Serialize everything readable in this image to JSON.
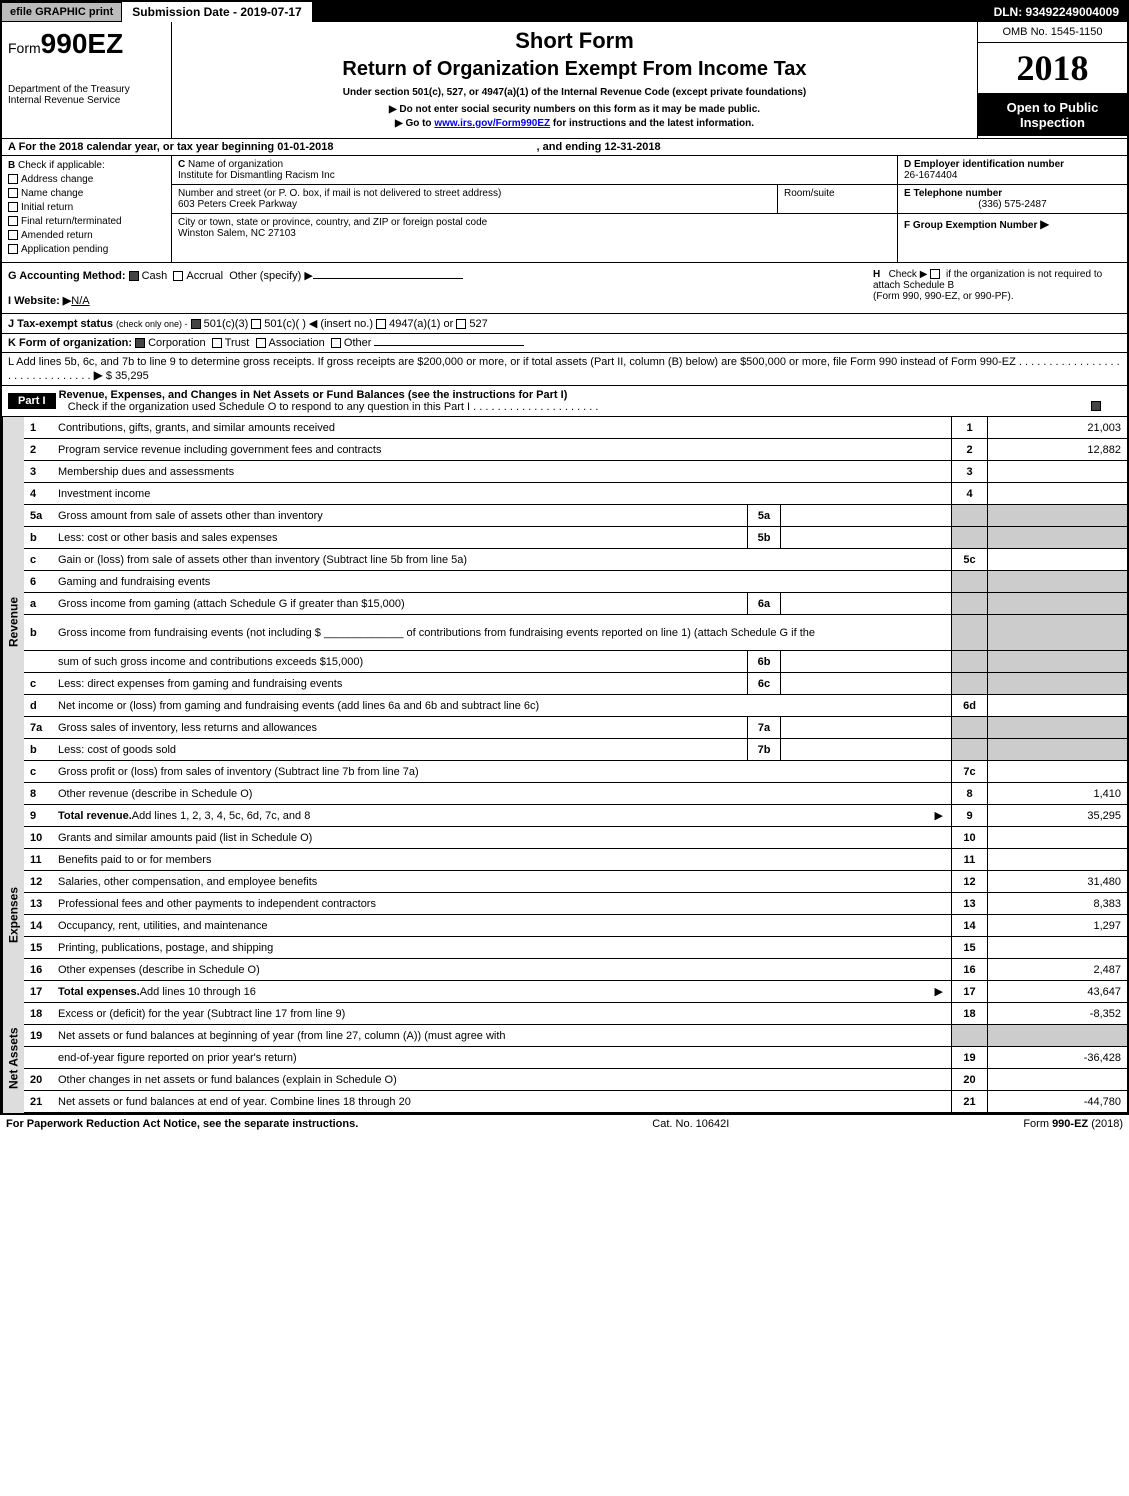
{
  "topbar": {
    "efile": "efile GRAPHIC print",
    "submission_label": "Submission Date - 2019-07-17",
    "dln": "DLN: 93492249004009"
  },
  "header": {
    "form_prefix": "Form",
    "form_number": "990EZ",
    "dept1": "Department of the Treasury",
    "dept2": "Internal Revenue Service",
    "short_form": "Short Form",
    "return_title": "Return of Organization Exempt From Income Tax",
    "subtitle": "Under section 501(c), 527, or 4947(a)(1) of the Internal Revenue Code (except private foundations)",
    "instr1": "▶ Do not enter social security numbers on this form as it may be made public.",
    "instr2_prefix": "▶ Go to ",
    "instr2_link": "www.irs.gov/Form990EZ",
    "instr2_suffix": " for instructions and the latest information.",
    "omb": "OMB No. 1545-1150",
    "year": "2018",
    "inspection1": "Open to Public",
    "inspection2": "Inspection"
  },
  "sectionA": {
    "line": "A  For the 2018 calendar year, or tax year beginning 01-01-2018",
    "ending": ", and ending 12-31-2018"
  },
  "sectionB": {
    "label": "B",
    "check_if": "Check if applicable:",
    "options": [
      "Address change",
      "Name change",
      "Initial return",
      "Final return/terminated",
      "Amended return",
      "Application pending"
    ]
  },
  "sectionC": {
    "label": "C",
    "name_label": "Name of organization",
    "name": "Institute for Dismantling Racism Inc",
    "addr_label": "Number and street (or P. O. box, if mail is not delivered to street address)",
    "addr": "603 Peters Creek Parkway",
    "room_label": "Room/suite",
    "city_label": "City or town, state or province, country, and ZIP or foreign postal code",
    "city": "Winston Salem, NC  27103"
  },
  "sectionD": {
    "label": "D Employer identification number",
    "value": "26-1674404"
  },
  "sectionE": {
    "label": "E Telephone number",
    "value": "(336) 575-2487"
  },
  "sectionF": {
    "label": "F Group Exemption Number",
    "arrow": "▶"
  },
  "sectionG": {
    "label": "G Accounting Method:",
    "cash": "Cash",
    "accrual": "Accrual",
    "other": "Other (specify) ▶"
  },
  "sectionH": {
    "label": "H",
    "check": "Check ▶",
    "text1": "if the organization is not required to attach Schedule B",
    "text2": "(Form 990, 990-EZ, or 990-PF)."
  },
  "sectionI": {
    "label": "I Website: ▶",
    "value": "N/A"
  },
  "sectionJ": {
    "label": "J Tax-exempt status",
    "note": "(check only one) -",
    "opts": [
      "501(c)(3)",
      "501(c)(  ) ◀ (insert no.)",
      "4947(a)(1) or",
      "527"
    ]
  },
  "sectionK": {
    "label": "K Form of organization:",
    "opts": [
      "Corporation",
      "Trust",
      "Association",
      "Other"
    ]
  },
  "sectionL": {
    "text": "L Add lines 5b, 6c, and 7b to line 9 to determine gross receipts. If gross receipts are $200,000 or more, or if total assets (Part II, column (B) below) are $500,000 or more, file Form 990 instead of Form 990-EZ",
    "arrow": "▶",
    "value": "$ 35,295"
  },
  "part1": {
    "header": "Part I",
    "title": "Revenue, Expenses, and Changes in Net Assets or Fund Balances (see the instructions for Part I)",
    "check_text": "Check if the organization used Schedule O to respond to any question in this Part I"
  },
  "sides": {
    "revenue": "Revenue",
    "expenses": "Expenses",
    "netassets": "Net Assets"
  },
  "rows": [
    {
      "num": "1",
      "desc": "Contributions, gifts, grants, and similar amounts received",
      "col": "1",
      "val": "21,003"
    },
    {
      "num": "2",
      "desc": "Program service revenue including government fees and contracts",
      "col": "2",
      "val": "12,882"
    },
    {
      "num": "3",
      "desc": "Membership dues and assessments",
      "col": "3",
      "val": ""
    },
    {
      "num": "4",
      "desc": "Investment income",
      "col": "4",
      "val": ""
    },
    {
      "num": "5a",
      "desc": "Gross amount from sale of assets other than inventory",
      "mid": "5a",
      "shaded": true
    },
    {
      "num": "b",
      "desc": "Less: cost or other basis and sales expenses",
      "mid": "5b",
      "shaded": true
    },
    {
      "num": "c",
      "desc": "Gain or (loss) from sale of assets other than inventory (Subtract line 5b from line 5a)",
      "col": "5c",
      "val": ""
    },
    {
      "num": "6",
      "desc": "Gaming and fundraising events",
      "shaded": true,
      "full_shade": true
    },
    {
      "num": "a",
      "desc": "Gross income from gaming (attach Schedule G if greater than $15,000)",
      "mid": "6a",
      "shaded": true
    },
    {
      "num": "b",
      "desc": "Gross income from fundraising events (not including $ _____________ of contributions from fundraising events reported on line 1) (attach Schedule G if the",
      "shaded": true,
      "tall": true
    },
    {
      "num": "",
      "desc": "sum of such gross income and contributions exceeds $15,000)",
      "mid": "6b",
      "shaded": true
    },
    {
      "num": "c",
      "desc": "Less: direct expenses from gaming and fundraising events",
      "mid": "6c",
      "shaded": true
    },
    {
      "num": "d",
      "desc": "Net income or (loss) from gaming and fundraising events (add lines 6a and 6b and subtract line 6c)",
      "col": "6d",
      "val": ""
    },
    {
      "num": "7a",
      "desc": "Gross sales of inventory, less returns and allowances",
      "mid": "7a",
      "shaded": true
    },
    {
      "num": "b",
      "desc": "Less: cost of goods sold",
      "mid": "7b",
      "shaded": true
    },
    {
      "num": "c",
      "desc": "Gross profit or (loss) from sales of inventory (Subtract line 7b from line 7a)",
      "col": "7c",
      "val": ""
    },
    {
      "num": "8",
      "desc": "Other revenue (describe in Schedule O)",
      "col": "8",
      "val": "1,410"
    },
    {
      "num": "9",
      "desc": "Total revenue. Add lines 1, 2, 3, 4, 5c, 6d, 7c, and 8",
      "col": "9",
      "val": "35,295",
      "bold": true,
      "arrow": true
    }
  ],
  "exp_rows": [
    {
      "num": "10",
      "desc": "Grants and similar amounts paid (list in Schedule O)",
      "col": "10",
      "val": ""
    },
    {
      "num": "11",
      "desc": "Benefits paid to or for members",
      "col": "11",
      "val": ""
    },
    {
      "num": "12",
      "desc": "Salaries, other compensation, and employee benefits",
      "col": "12",
      "val": "31,480"
    },
    {
      "num": "13",
      "desc": "Professional fees and other payments to independent contractors",
      "col": "13",
      "val": "8,383"
    },
    {
      "num": "14",
      "desc": "Occupancy, rent, utilities, and maintenance",
      "col": "14",
      "val": "1,297"
    },
    {
      "num": "15",
      "desc": "Printing, publications, postage, and shipping",
      "col": "15",
      "val": ""
    },
    {
      "num": "16",
      "desc": "Other expenses (describe in Schedule O)",
      "col": "16",
      "val": "2,487"
    },
    {
      "num": "17",
      "desc": "Total expenses. Add lines 10 through 16",
      "col": "17",
      "val": "43,647",
      "bold": true,
      "arrow": true
    }
  ],
  "net_rows": [
    {
      "num": "18",
      "desc": "Excess or (deficit) for the year (Subtract line 17 from line 9)",
      "col": "18",
      "val": "-8,352"
    },
    {
      "num": "19",
      "desc": "Net assets or fund balances at beginning of year (from line 27, column (A)) (must agree with",
      "shaded": true
    },
    {
      "num": "",
      "desc": "end-of-year figure reported on prior year's return)",
      "col": "19",
      "val": "-36,428"
    },
    {
      "num": "20",
      "desc": "Other changes in net assets or fund balances (explain in Schedule O)",
      "col": "20",
      "val": ""
    },
    {
      "num": "21",
      "desc": "Net assets or fund balances at end of year. Combine lines 18 through 20",
      "col": "21",
      "val": "-44,780"
    }
  ],
  "footer": {
    "left": "For Paperwork Reduction Act Notice, see the separate instructions.",
    "center": "Cat. No. 10642I",
    "right": "Form 990-EZ (2018)"
  }
}
